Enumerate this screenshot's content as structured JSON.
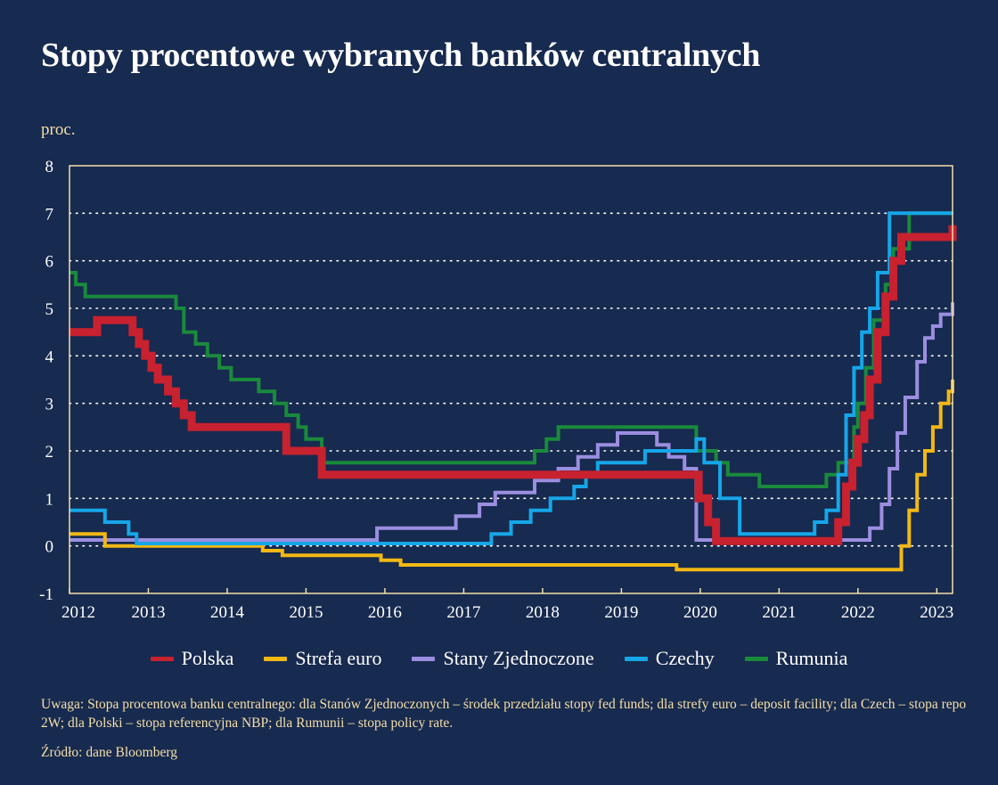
{
  "title": "Stopy procentowe wybranych banków centralnych",
  "unit": "proc.",
  "note": "Uwaga: Stopa procentowa banku centralnego: dla Stanów Zjednoczonych – środek przedziału stopy fed funds; dla strefy euro – deposit facility; dla Czech – stopa repo 2W; dla Polski – stopa referencyjna NBP; dla Rumunii – stopa policy rate.",
  "source": "Źródło: dane Bloomberg",
  "chart_data": {
    "type": "line",
    "step": true,
    "xlim": [
      2012.0,
      2023.2
    ],
    "ylim": [
      -1,
      8
    ],
    "y_ticks": [
      -1,
      0,
      1,
      2,
      3,
      4,
      5,
      6,
      7,
      8
    ],
    "x_ticks": [
      2012,
      2013,
      2014,
      2015,
      2016,
      2017,
      2018,
      2019,
      2020,
      2021,
      2022,
      2023
    ],
    "grid": "horizontal dotted",
    "legend_position": "bottom",
    "series": [
      {
        "name": "Rumunia",
        "color": "#1a8a3c",
        "width": 4,
        "x": [
          2012.0,
          2012.08,
          2012.2,
          2012.45,
          2013.35,
          2013.45,
          2013.6,
          2013.75,
          2013.9,
          2014.05,
          2014.4,
          2014.6,
          2014.75,
          2014.9,
          2015.0,
          2015.2,
          2017.9,
          2018.05,
          2018.2,
          2019.95,
          2020.2,
          2020.35,
          2020.75,
          2021.5,
          2021.6,
          2021.75,
          2021.95,
          2022.0,
          2022.1,
          2022.2,
          2022.35,
          2022.45,
          2022.65,
          2022.75,
          2023.2
        ],
        "y": [
          5.75,
          5.5,
          5.25,
          5.25,
          5.0,
          4.5,
          4.25,
          4.0,
          3.75,
          3.5,
          3.25,
          3.0,
          2.75,
          2.5,
          2.25,
          1.75,
          2.0,
          2.25,
          2.5,
          2.0,
          1.75,
          1.5,
          1.25,
          1.25,
          1.5,
          1.75,
          2.5,
          3.0,
          3.75,
          4.75,
          5.5,
          6.25,
          7.0,
          7.0,
          7.0
        ]
      },
      {
        "name": "Stany Zjednoczone",
        "color": "#9b8ee0",
        "width": 4,
        "x": [
          2012.0,
          2015.9,
          2016.9,
          2017.2,
          2017.4,
          2017.9,
          2018.2,
          2018.45,
          2018.7,
          2018.95,
          2019.45,
          2019.6,
          2019.8,
          2019.95,
          2022.15,
          2022.3,
          2022.4,
          2022.5,
          2022.6,
          2022.75,
          2022.85,
          2022.95,
          2023.05,
          2023.2
        ],
        "y": [
          0.125,
          0.375,
          0.625,
          0.875,
          1.125,
          1.375,
          1.625,
          1.875,
          2.125,
          2.375,
          2.125,
          1.875,
          1.625,
          0.125,
          0.375,
          0.875,
          1.625,
          2.375,
          3.125,
          3.875,
          4.375,
          4.625,
          4.875,
          5.125
        ]
      },
      {
        "name": "Strefa euro",
        "color": "#f2b815",
        "width": 4,
        "x": [
          2012.0,
          2012.45,
          2014.45,
          2014.7,
          2015.95,
          2016.2,
          2019.7,
          2022.55,
          2022.65,
          2022.75,
          2022.85,
          2022.95,
          2023.05,
          2023.15,
          2023.2
        ],
        "y": [
          0.25,
          0.0,
          -0.1,
          -0.2,
          -0.3,
          -0.4,
          -0.5,
          0.0,
          0.75,
          1.5,
          2.0,
          2.5,
          3.0,
          3.25,
          3.5
        ]
      },
      {
        "name": "Czechy",
        "color": "#16a6e8",
        "width": 4,
        "x": [
          2012.0,
          2012.45,
          2012.75,
          2012.85,
          2017.35,
          2017.6,
          2017.85,
          2018.1,
          2018.4,
          2018.55,
          2018.7,
          2018.9,
          2019.3,
          2019.95,
          2020.05,
          2020.25,
          2020.5,
          2021.45,
          2021.6,
          2021.75,
          2021.85,
          2021.95,
          2022.05,
          2022.15,
          2022.25,
          2022.4,
          2022.5,
          2023.2
        ],
        "y": [
          0.75,
          0.5,
          0.25,
          0.05,
          0.25,
          0.5,
          0.75,
          1.0,
          1.25,
          1.5,
          1.75,
          1.75,
          2.0,
          2.25,
          1.75,
          1.0,
          0.25,
          0.5,
          0.75,
          1.5,
          2.75,
          3.75,
          4.5,
          5.0,
          5.75,
          7.0,
          7.0,
          7.0
        ]
      },
      {
        "name": "Polska",
        "color": "#c8212f",
        "width": 9,
        "x": [
          2012.0,
          2012.35,
          2012.8,
          2012.88,
          2012.96,
          2013.04,
          2013.12,
          2013.25,
          2013.35,
          2013.45,
          2013.55,
          2014.75,
          2015.2,
          2019.98,
          2020.1,
          2020.2,
          2021.75,
          2021.85,
          2021.93,
          2022.0,
          2022.08,
          2022.15,
          2022.25,
          2022.35,
          2022.45,
          2022.55,
          2023.2
        ],
        "y": [
          4.5,
          4.75,
          4.5,
          4.25,
          4.0,
          3.75,
          3.5,
          3.25,
          3.0,
          2.75,
          2.5,
          2.0,
          1.5,
          1.0,
          0.5,
          0.1,
          0.5,
          1.25,
          1.75,
          2.25,
          2.75,
          3.5,
          4.5,
          5.25,
          6.0,
          6.5,
          6.75
        ]
      }
    ],
    "legend": [
      {
        "name": "Polska",
        "color": "#c8212f"
      },
      {
        "name": "Strefa euro",
        "color": "#f2b815"
      },
      {
        "name": "Stany Zjednoczone",
        "color": "#9b8ee0"
      },
      {
        "name": "Czechy",
        "color": "#16a6e8"
      },
      {
        "name": "Rumunia",
        "color": "#1a8a3c"
      }
    ]
  }
}
